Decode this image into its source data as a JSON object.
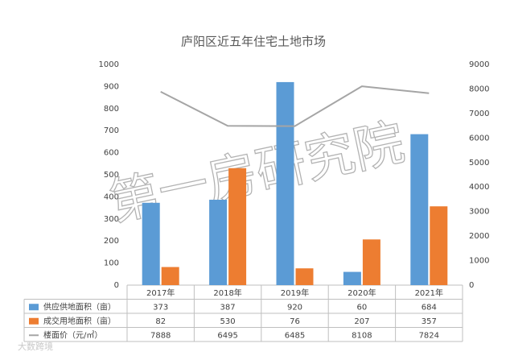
{
  "chart_data": {
    "type": "bar_line",
    "title": "庐阳区近五年住宅土地市场",
    "categories": [
      "2017年",
      "2018年",
      "2019年",
      "2020年",
      "2021年"
    ],
    "series": [
      {
        "name": "供应供地面积（亩）",
        "color": "#5b9bd5",
        "type": "bar",
        "values": [
          373,
          387,
          920,
          60,
          684
        ]
      },
      {
        "name": "成交用地面积（亩）",
        "color": "#ed7d31",
        "type": "bar",
        "values": [
          82,
          530,
          76,
          207,
          357
        ]
      },
      {
        "name": "楼面价（元/㎡）",
        "color": "#a5a5a5",
        "type": "line",
        "axis": "y2",
        "values": [
          7888,
          6495,
          6485,
          8108,
          7824
        ]
      }
    ],
    "ylim": [
      0,
      1000
    ],
    "yticks": [
      0,
      100,
      200,
      300,
      400,
      500,
      600,
      700,
      800,
      900,
      1000
    ],
    "y2lim": [
      0,
      9000
    ],
    "y2ticks": [
      0,
      1000,
      2000,
      3000,
      4000,
      5000,
      6000,
      7000,
      8000,
      9000
    ],
    "grid": false,
    "watermark": "第一房研究院",
    "logo_text": "大数跨境"
  }
}
